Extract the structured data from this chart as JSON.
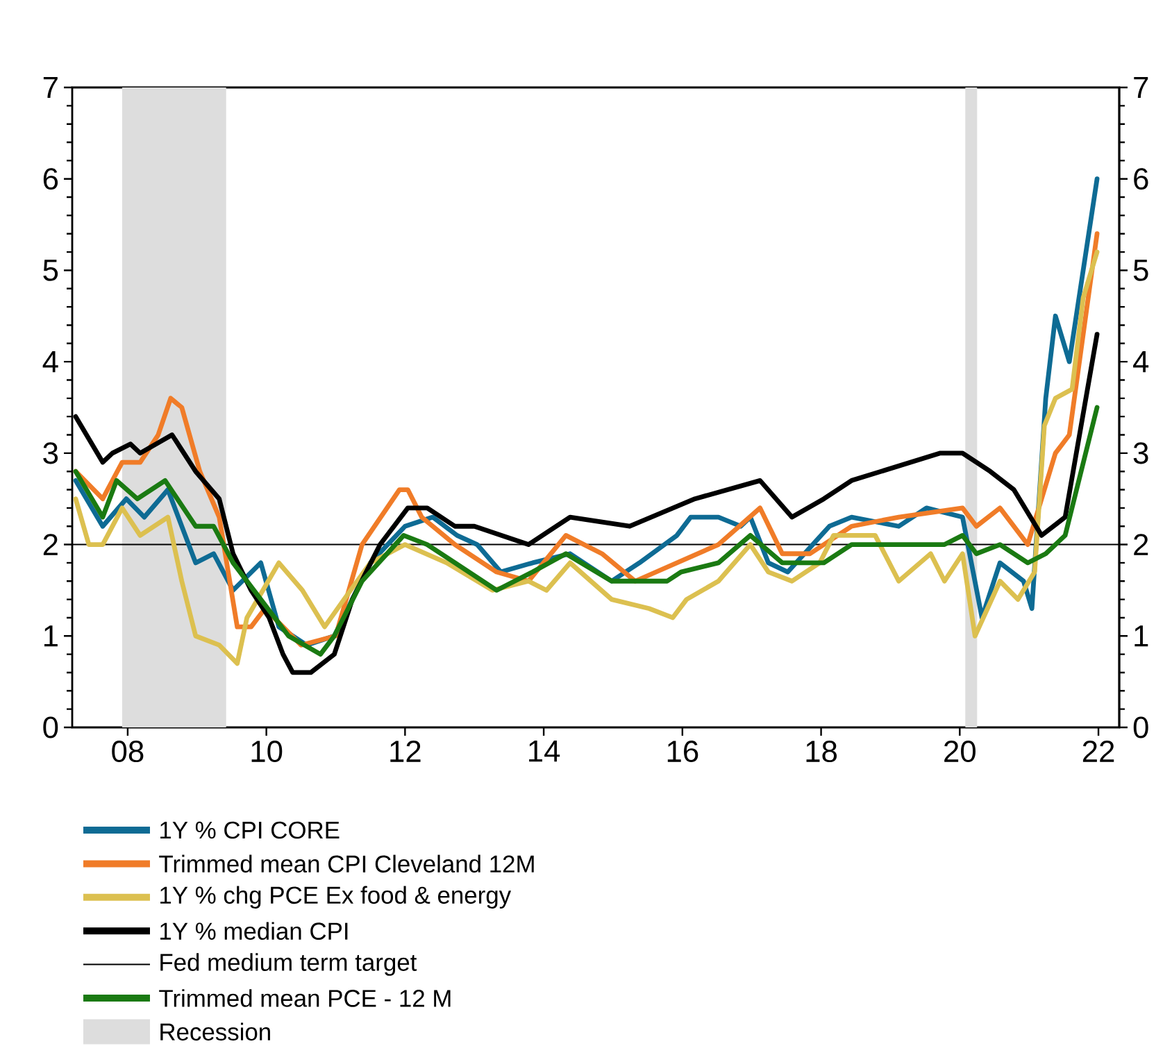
{
  "chart_data": {
    "type": "line",
    "xlim": [
      2007.2,
      2022.3
    ],
    "ylim": [
      0,
      7
    ],
    "y2lim": [
      0,
      7
    ],
    "xticks": [
      {
        "value": 2008,
        "label": "08"
      },
      {
        "value": 2010,
        "label": "10"
      },
      {
        "value": 2012,
        "label": "12"
      },
      {
        "value": 2014,
        "label": "14"
      },
      {
        "value": 2016,
        "label": "16"
      },
      {
        "value": 2018,
        "label": "18"
      },
      {
        "value": 2020,
        "label": "20"
      },
      {
        "value": 2022,
        "label": "22"
      }
    ],
    "yticks": [
      0,
      1,
      2,
      3,
      4,
      5,
      6,
      7
    ],
    "y2ticks": [
      0,
      1,
      2,
      3,
      4,
      5,
      6,
      7
    ],
    "legend": "bottom",
    "series": [
      {
        "name": "1Y % CPI CORE",
        "color": "#0e6b94",
        "x": [
          2007.25,
          2007.64,
          2007.98,
          2008.24,
          2008.58,
          2008.98,
          2009.24,
          2009.52,
          2009.92,
          2010.18,
          2010.58,
          2010.98,
          2011.5,
          2012.0,
          2012.4,
          2012.75,
          2013.04,
          2013.38,
          2013.84,
          2014.38,
          2014.98,
          2015.38,
          2015.92,
          2016.12,
          2016.52,
          2016.84,
          2016.98,
          2017.24,
          2017.52,
          2018.12,
          2018.44,
          2019.12,
          2019.52,
          2020.04,
          2020.32,
          2020.58,
          2020.92,
          2021.04,
          2021.24,
          2021.38,
          2021.58,
          2021.98
        ],
        "values": [
          2.7,
          2.2,
          2.5,
          2.3,
          2.6,
          1.8,
          1.9,
          1.5,
          1.8,
          1.1,
          0.9,
          1.0,
          1.8,
          2.2,
          2.3,
          2.1,
          2.0,
          1.7,
          1.8,
          1.9,
          1.6,
          1.8,
          2.1,
          2.3,
          2.3,
          2.2,
          2.3,
          1.8,
          1.7,
          2.2,
          2.3,
          2.2,
          2.4,
          2.3,
          1.2,
          1.8,
          1.6,
          1.3,
          3.6,
          4.5,
          4.0,
          6.0
        ]
      },
      {
        "name": "Trimmed mean CPI Cleveland 12M",
        "color": "#f07c28",
        "x": [
          2007.25,
          2007.64,
          2007.92,
          2008.18,
          2008.44,
          2008.62,
          2008.78,
          2009.04,
          2009.32,
          2009.58,
          2009.78,
          2009.98,
          2010.5,
          2011.0,
          2011.38,
          2011.92,
          2012.04,
          2012.24,
          2012.72,
          2013.32,
          2013.78,
          2014.32,
          2014.84,
          2015.32,
          2015.92,
          2016.52,
          2017.12,
          2017.44,
          2017.84,
          2018.44,
          2019.12,
          2020.04,
          2020.24,
          2020.58,
          2020.98,
          2021.38,
          2021.58,
          2021.98
        ],
        "values": [
          2.8,
          2.5,
          2.9,
          2.9,
          3.2,
          3.6,
          3.5,
          2.8,
          2.3,
          1.1,
          1.1,
          1.3,
          0.9,
          1.0,
          2.0,
          2.6,
          2.6,
          2.3,
          2.0,
          1.7,
          1.6,
          2.1,
          1.9,
          1.6,
          1.8,
          2.0,
          2.4,
          1.9,
          1.9,
          2.2,
          2.3,
          2.4,
          2.2,
          2.4,
          2.0,
          3.0,
          3.2,
          5.4
        ]
      },
      {
        "name": "1Y % chg PCE Ex food & energy",
        "color": "#dcc050",
        "x": [
          2007.25,
          2007.44,
          2007.64,
          2007.92,
          2008.18,
          2008.58,
          2008.78,
          2008.98,
          2009.32,
          2009.58,
          2009.72,
          2010.18,
          2010.52,
          2010.84,
          2011.12,
          2011.5,
          2012.0,
          2012.6,
          2013.26,
          2013.78,
          2014.04,
          2014.38,
          2014.98,
          2015.52,
          2015.86,
          2016.06,
          2016.52,
          2016.98,
          2017.24,
          2017.58,
          2017.98,
          2018.18,
          2018.78,
          2019.12,
          2019.58,
          2019.78,
          2020.04,
          2020.22,
          2020.58,
          2020.84,
          2021.08,
          2021.22,
          2021.38,
          2021.62,
          2021.78,
          2021.98
        ],
        "values": [
          2.5,
          2.0,
          2.0,
          2.4,
          2.1,
          2.3,
          1.6,
          1.0,
          0.9,
          0.7,
          1.2,
          1.8,
          1.5,
          1.1,
          1.4,
          1.8,
          2.0,
          1.8,
          1.5,
          1.6,
          1.5,
          1.8,
          1.4,
          1.3,
          1.2,
          1.4,
          1.6,
          2.0,
          1.7,
          1.6,
          1.8,
          2.1,
          2.1,
          1.6,
          1.9,
          1.6,
          1.9,
          1.0,
          1.6,
          1.4,
          1.7,
          3.3,
          3.6,
          3.7,
          4.7,
          5.2
        ]
      },
      {
        "name": "1Y % median CPI",
        "color": "#000000",
        "x": [
          2007.25,
          2007.64,
          2007.78,
          2008.04,
          2008.18,
          2008.64,
          2008.98,
          2009.32,
          2009.52,
          2009.78,
          2010.04,
          2010.24,
          2010.38,
          2010.64,
          2010.98,
          2011.24,
          2011.64,
          2012.04,
          2012.32,
          2012.72,
          2013.0,
          2013.78,
          2014.38,
          2015.24,
          2016.18,
          2017.12,
          2017.58,
          2018.04,
          2018.44,
          2019.72,
          2020.04,
          2020.44,
          2020.78,
          2021.18,
          2021.52,
          2021.98
        ],
        "values": [
          3.4,
          2.9,
          3.0,
          3.1,
          3.0,
          3.2,
          2.8,
          2.5,
          1.9,
          1.5,
          1.2,
          0.8,
          0.6,
          0.6,
          0.8,
          1.4,
          2.0,
          2.4,
          2.4,
          2.2,
          2.2,
          2.0,
          2.3,
          2.2,
          2.5,
          2.7,
          2.3,
          2.5,
          2.7,
          3.0,
          3.0,
          2.8,
          2.6,
          2.1,
          2.3,
          4.3
        ]
      },
      {
        "name": "Trimmed mean PCE - 12 M",
        "color": "#1a7a12",
        "x": [
          2007.25,
          2007.64,
          2007.84,
          2008.14,
          2008.54,
          2008.98,
          2009.24,
          2009.52,
          2009.92,
          2010.32,
          2010.78,
          2010.98,
          2011.38,
          2011.98,
          2012.32,
          2012.72,
          2013.32,
          2013.84,
          2014.32,
          2014.98,
          2015.78,
          2015.98,
          2016.52,
          2016.98,
          2017.44,
          2018.04,
          2018.44,
          2019.12,
          2019.78,
          2020.04,
          2020.24,
          2020.58,
          2020.98,
          2021.24,
          2021.52,
          2021.98
        ],
        "values": [
          2.8,
          2.3,
          2.7,
          2.5,
          2.7,
          2.2,
          2.2,
          1.8,
          1.4,
          1.0,
          0.8,
          1.0,
          1.6,
          2.1,
          2.0,
          1.8,
          1.5,
          1.7,
          1.9,
          1.6,
          1.6,
          1.7,
          1.8,
          2.1,
          1.8,
          1.8,
          2.0,
          2.0,
          2.0,
          2.1,
          1.9,
          2.0,
          1.8,
          1.9,
          2.1,
          3.5
        ]
      }
    ],
    "ref_lines": [
      {
        "axis": "y",
        "value": 2,
        "label": "Fed medium term target",
        "color": "#000000"
      }
    ],
    "bands": [
      {
        "axis": "x",
        "from": 2007.92,
        "to": 2009.42,
        "label": "Recession",
        "color": "#dddddd"
      },
      {
        "axis": "x",
        "from": 2020.08,
        "to": 2020.25,
        "color": "#dddddd"
      }
    ]
  }
}
